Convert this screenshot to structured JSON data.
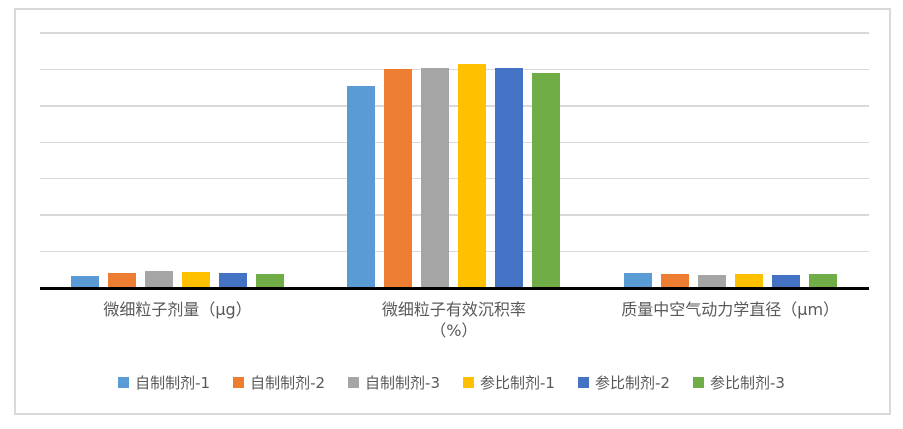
{
  "chart_data": {
    "type": "bar",
    "title": "",
    "xlabel": "",
    "ylabel": "",
    "categories": [
      "微细粒子剂量（μg）",
      "微细粒子有效沉积率\n（%）",
      "质量中空气动力学直径（μm）"
    ],
    "series": [
      {
        "name": "自制制剂-1",
        "color": "#5B9BD5",
        "values": [
          3.3,
          55.5,
          4.0
        ]
      },
      {
        "name": "自制制剂-2",
        "color": "#ED7D31",
        "values": [
          4.0,
          60.0,
          3.8
        ]
      },
      {
        "name": "自制制剂-3",
        "color": "#A5A5A5",
        "values": [
          4.6,
          60.5,
          3.6
        ]
      },
      {
        "name": "参比制剂-1",
        "color": "#FFC000",
        "values": [
          4.3,
          61.5,
          3.9
        ]
      },
      {
        "name": "参比制剂-2",
        "color": "#4472C4",
        "values": [
          4.2,
          60.5,
          3.7
        ]
      },
      {
        "name": "参比制剂-3",
        "color": "#70AD47",
        "values": [
          3.9,
          59.0,
          3.9
        ]
      }
    ],
    "ylim": [
      0,
      70
    ],
    "gridline_interval": 10,
    "grid": true,
    "y_axis_tick_labels_visible": false,
    "legend_position": "bottom"
  },
  "style_hints": {
    "frame_border_color": "#D9D9D9",
    "gridline_color": "#D9D9D9",
    "axis_line_color": "#000000",
    "text_color": "#595959",
    "background_color": "#FFFFFF"
  }
}
